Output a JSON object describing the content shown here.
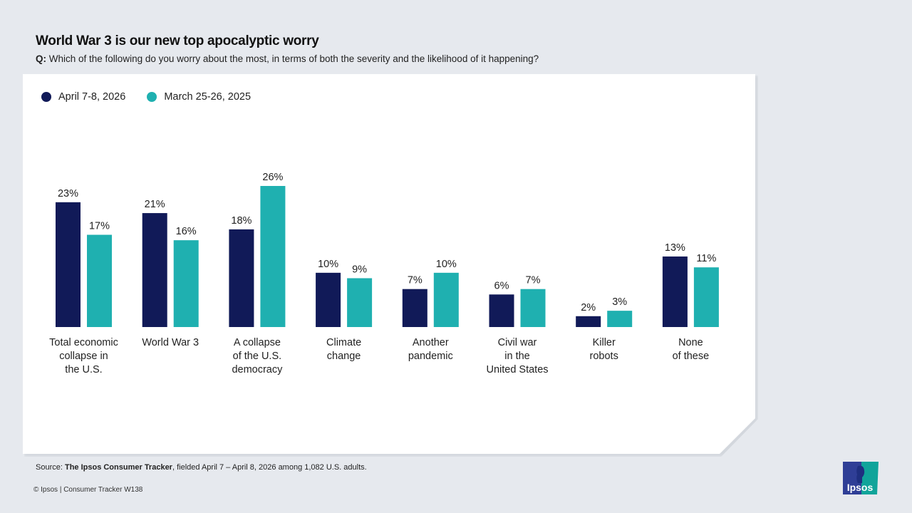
{
  "title": "World War 3 is our new top apocalyptic worry",
  "question_prefix": "Q:",
  "question": "Which of the following do you worry about the most, in terms of both the severity and the likelihood of it happening?",
  "source_prefix": "Source: ",
  "source_bold": "The Ipsos Consumer Tracker",
  "source_rest": ", fielded April 7 – April 8, 2026 among 1,082 U.S. adults.",
  "copyright": "© Ipsos | Consumer Tracker W138",
  "logo_text": "Ipsos",
  "chart_data": {
    "type": "bar",
    "title": "",
    "xlabel": "",
    "ylabel": "",
    "ylim": [
      0,
      26
    ],
    "grid": false,
    "legend_placement": "top-left",
    "value_format": "percent",
    "categories": [
      [
        "Total economic",
        "collapse in",
        "the U.S."
      ],
      [
        "World War 3"
      ],
      [
        "A collapse",
        "of the U.S.",
        "democracy"
      ],
      [
        "Climate",
        "change"
      ],
      [
        "Another",
        "pandemic"
      ],
      [
        "Civil war",
        "in the",
        "United States"
      ],
      [
        "Killer",
        "robots"
      ],
      [
        "None",
        "of these"
      ]
    ],
    "series": [
      {
        "name": "April 7-8, 2026",
        "color": "#111a58",
        "values": [
          23,
          21,
          18,
          10,
          7,
          6,
          2,
          13
        ]
      },
      {
        "name": "March 25-26, 2025",
        "color": "#1fb0b0",
        "values": [
          17,
          16,
          26,
          9,
          10,
          7,
          3,
          11
        ]
      }
    ]
  }
}
